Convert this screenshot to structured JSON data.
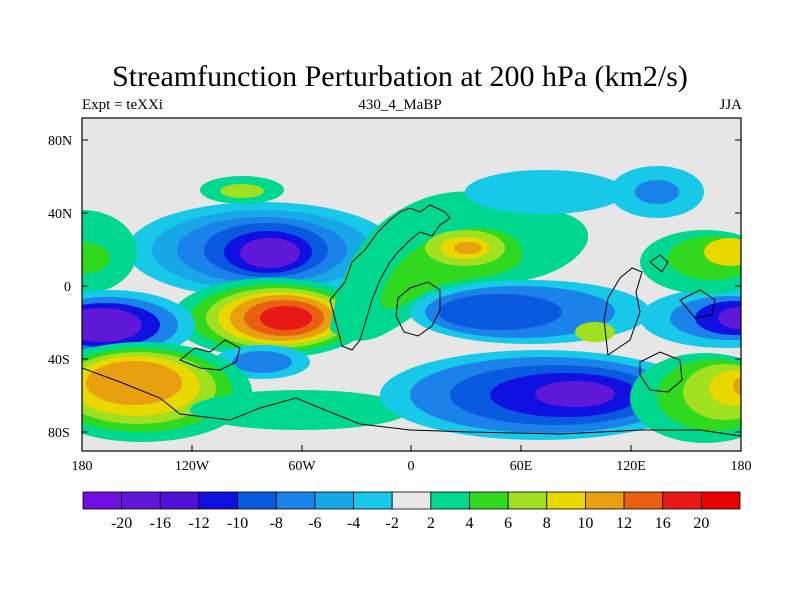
{
  "title": "Streamfunction Perturbation at 200 hPa (km2/s)",
  "subtitle": {
    "left": "Expt = teXXi",
    "center": "430_4_MaBP",
    "right": "JJA"
  },
  "axes": {
    "y_ticks": [
      "80N",
      "40N",
      "0",
      "40S",
      "80S"
    ],
    "x_ticks": [
      "180",
      "120W",
      "60W",
      "0",
      "60E",
      "120E",
      "180"
    ]
  },
  "colorbar": {
    "labels": [
      "-20",
      "-16",
      "-12",
      "-10",
      "-8",
      "-6",
      "-4",
      "-2",
      "2",
      "4",
      "6",
      "8",
      "10",
      "12",
      "16",
      "20"
    ],
    "colors": [
      "#7010e0",
      "#6018d8",
      "#5010d8",
      "#1010e0",
      "#0a5ae0",
      "#1a82e8",
      "#18a8e8",
      "#18c8e8",
      "#e8e8e8",
      "#00d890",
      "#30d820",
      "#a0e020",
      "#e8d800",
      "#e8a010",
      "#e86010",
      "#e81818",
      "#e80000"
    ]
  }
}
